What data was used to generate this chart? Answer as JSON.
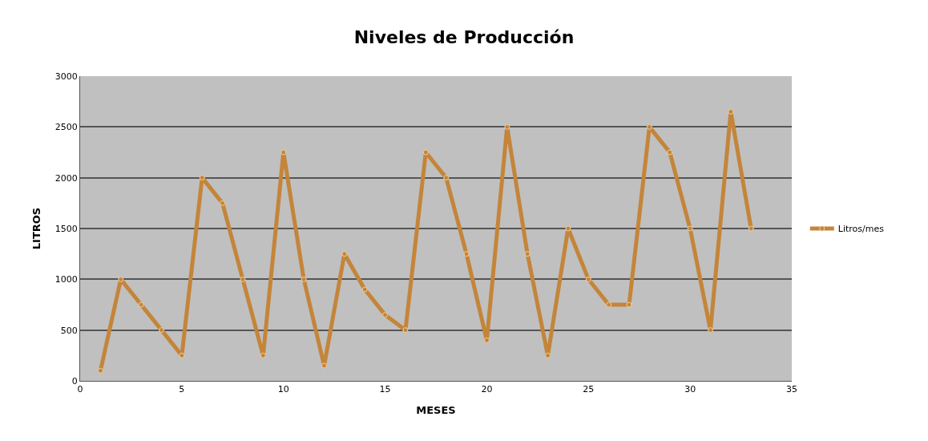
{
  "chart_data": {
    "type": "line",
    "title": "Niveles de Producción",
    "xlabel": "MESES",
    "ylabel": "LITROS",
    "x": [
      1,
      2,
      3,
      4,
      5,
      6,
      7,
      8,
      9,
      10,
      11,
      12,
      13,
      14,
      15,
      16,
      17,
      18,
      19,
      20,
      21,
      22,
      23,
      24,
      25,
      26,
      27,
      28,
      29,
      30,
      31,
      32,
      33
    ],
    "series": [
      {
        "name": "Litros/mes",
        "color": "#c4853a",
        "values": [
          100,
          1000,
          750,
          500,
          250,
          2000,
          1750,
          1000,
          250,
          2250,
          1000,
          150,
          1250,
          900,
          650,
          500,
          2250,
          2000,
          1250,
          400,
          2500,
          1250,
          250,
          1500,
          1000,
          750,
          750,
          2500,
          2250,
          1500,
          500,
          2650,
          1500
        ]
      }
    ],
    "xlim": [
      0,
      35
    ],
    "xticks": [
      0,
      5,
      10,
      15,
      20,
      25,
      30,
      35
    ],
    "ylim": [
      0,
      3000
    ],
    "yticks": [
      0,
      500,
      1000,
      1500,
      2000,
      2500,
      3000
    ],
    "grid": "y",
    "legend": "right",
    "marker": "circle",
    "line_style": "solid"
  }
}
